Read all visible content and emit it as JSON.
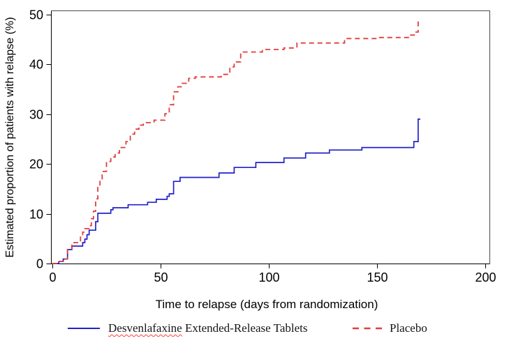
{
  "chart_data": {
    "type": "line",
    "subtype": "kaplan_meier_step",
    "title": "",
    "xlabel": "Time to relapse (days from randomization)",
    "ylabel": "Estimated proportion of patients with relapse (%)",
    "xlim": [
      0,
      200
    ],
    "ylim": [
      0,
      50
    ],
    "x_ticks": [
      0,
      50,
      100,
      150,
      200
    ],
    "y_ticks": [
      0,
      10,
      20,
      30,
      40,
      50
    ],
    "grid": false,
    "legend_position": "bottom-center",
    "series": [
      {
        "name": "Desvenlafaxine Extended-Release Tablets",
        "color": "#2121c8",
        "line_style": "solid",
        "points": [
          [
            0,
            0
          ],
          [
            3,
            0.4
          ],
          [
            5,
            0.9
          ],
          [
            7,
            2.8
          ],
          [
            9,
            3.5
          ],
          [
            14,
            4.2
          ],
          [
            15,
            4.9
          ],
          [
            16,
            5.8
          ],
          [
            17,
            6.7
          ],
          [
            20,
            8.4
          ],
          [
            21,
            10.1
          ],
          [
            27,
            10.8
          ],
          [
            28,
            11.2
          ],
          [
            35,
            11.8
          ],
          [
            44,
            12.3
          ],
          [
            48,
            12.9
          ],
          [
            53,
            13.5
          ],
          [
            54,
            14.0
          ],
          [
            56,
            16.5
          ],
          [
            59,
            17.3
          ],
          [
            77,
            18.2
          ],
          [
            84,
            19.3
          ],
          [
            94,
            20.3
          ],
          [
            107,
            21.2
          ],
          [
            117,
            22.2
          ],
          [
            128,
            22.8
          ],
          [
            143,
            23.3
          ],
          [
            167,
            24.5
          ],
          [
            169,
            29.0
          ],
          [
            170,
            29.0
          ]
        ]
      },
      {
        "name": "Placebo",
        "color": "#e03e3e",
        "line_style": "dashed",
        "points": [
          [
            0,
            0
          ],
          [
            2,
            0.4
          ],
          [
            5,
            0.9
          ],
          [
            7,
            2.8
          ],
          [
            9,
            3.9
          ],
          [
            10,
            4.2
          ],
          [
            13,
            5.3
          ],
          [
            14,
            6.3
          ],
          [
            15,
            7.0
          ],
          [
            17,
            7.6
          ],
          [
            18,
            9.0
          ],
          [
            19,
            10.5
          ],
          [
            20,
            13.0
          ],
          [
            21,
            15.5
          ],
          [
            22,
            17.0
          ],
          [
            23,
            18.5
          ],
          [
            25,
            20.5
          ],
          [
            27,
            21.4
          ],
          [
            29,
            22.2
          ],
          [
            31,
            23.3
          ],
          [
            34,
            24.5
          ],
          [
            36,
            26.0
          ],
          [
            38,
            27.0
          ],
          [
            40,
            27.8
          ],
          [
            42,
            28.3
          ],
          [
            47,
            28.8
          ],
          [
            52,
            30.1
          ],
          [
            54,
            31.9
          ],
          [
            56,
            34.5
          ],
          [
            58,
            35.5
          ],
          [
            60,
            36.2
          ],
          [
            63,
            37.2
          ],
          [
            66,
            37.5
          ],
          [
            78,
            38.0
          ],
          [
            82,
            39.5
          ],
          [
            84,
            40.5
          ],
          [
            87,
            42.5
          ],
          [
            97,
            43.0
          ],
          [
            107,
            43.3
          ],
          [
            113,
            44.3
          ],
          [
            135,
            45.2
          ],
          [
            150,
            45.4
          ],
          [
            165,
            45.9
          ],
          [
            168,
            46.5
          ],
          [
            169,
            48.5
          ],
          [
            170,
            48.8
          ]
        ]
      }
    ]
  },
  "legend": {
    "items": [
      {
        "label": "Desvenlafaxine Extended-Release Tablets",
        "misspelled_word": "Desvenlafaxine",
        "label_rest": " Extended-Release Tablets",
        "swatch": "solid-blue-line"
      },
      {
        "label": "Placebo",
        "swatch": "dashed-red-line"
      }
    ]
  }
}
